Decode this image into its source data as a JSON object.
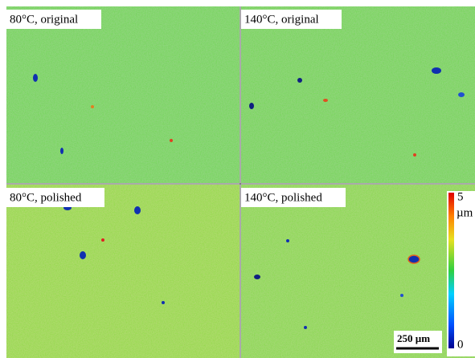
{
  "panels": [
    {
      "label": "80°C, original"
    },
    {
      "label": "140°C, original"
    },
    {
      "label": "80°C, polished"
    },
    {
      "label": "140°C, polished"
    }
  ],
  "colorbar": {
    "max": "5",
    "unit": "µm",
    "min": "0"
  },
  "scale_bar": {
    "label": "250 µm"
  }
}
